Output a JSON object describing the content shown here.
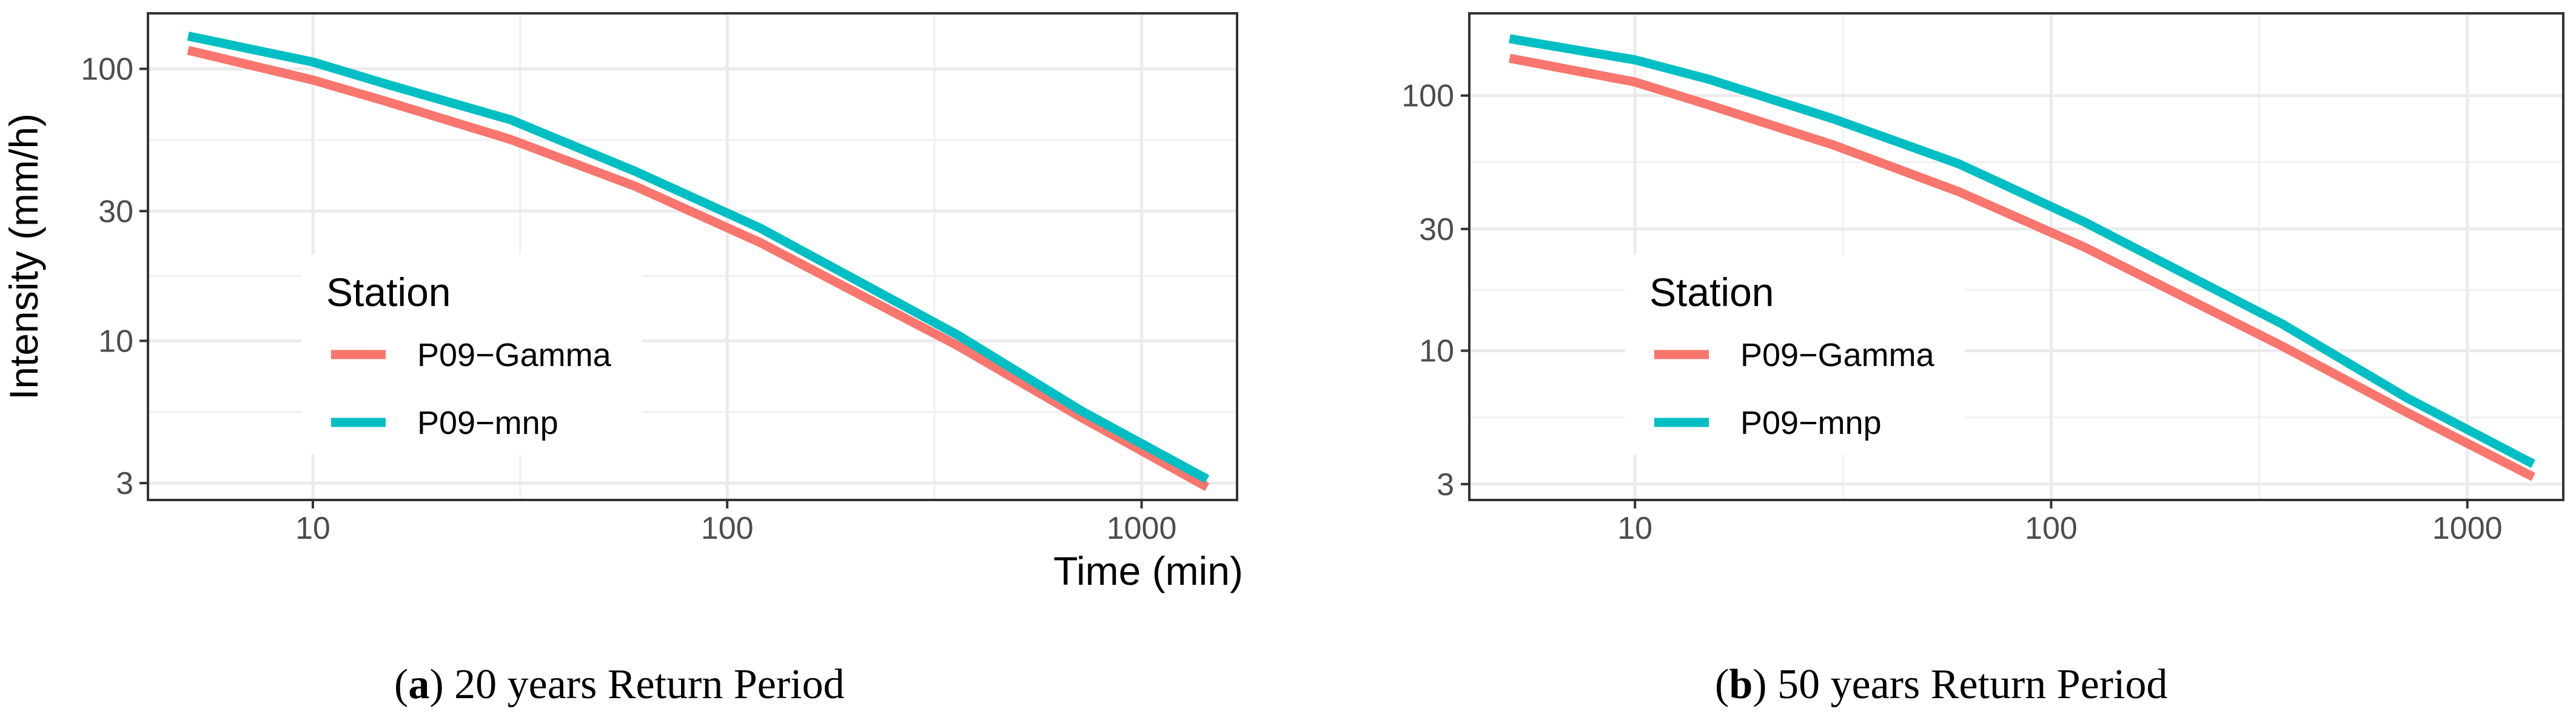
{
  "chart_data": [
    {
      "type": "line",
      "panel_letter": "a",
      "caption": "20 years Return Period",
      "xlabel": "Time (min)",
      "ylabel": "Intensity (mm/h)",
      "xscale": "log",
      "yscale": "log",
      "xlim": [
        4,
        1700
      ],
      "ylim": [
        2.6,
        160
      ],
      "xticks": [
        10,
        100,
        1000
      ],
      "xtick_labels": [
        "10",
        "100",
        "1000"
      ],
      "yticks": [
        3,
        10,
        30,
        100
      ],
      "ytick_labels": [
        "3",
        "10",
        "30",
        "100"
      ],
      "grid": true,
      "legend": {
        "title": "Station",
        "position": "inside-left"
      },
      "x": [
        5,
        10,
        15,
        30,
        60,
        120,
        360,
        720,
        1440
      ],
      "series": [
        {
          "name": "P09−Gamma",
          "color": "#F8766D",
          "values": [
            117,
            91,
            76,
            55,
            37,
            23,
            9.6,
            5.2,
            2.9
          ]
        },
        {
          "name": "P09−mnp",
          "color": "#00BFC4",
          "values": [
            132,
            106,
            88,
            65,
            42,
            26,
            10.5,
            5.5,
            3.1
          ]
        }
      ]
    },
    {
      "type": "line",
      "panel_letter": "b",
      "caption": "50 years Return Period",
      "xlabel": "",
      "ylabel": "",
      "xscale": "log",
      "yscale": "log",
      "xlim": [
        4,
        1700
      ],
      "ylim": [
        2.6,
        210
      ],
      "xticks": [
        10,
        100,
        1000
      ],
      "xtick_labels": [
        "10",
        "100",
        "1000"
      ],
      "yticks": [
        3,
        10,
        30,
        100
      ],
      "ytick_labels": [
        "3",
        "10",
        "30",
        "100"
      ],
      "grid": true,
      "legend": {
        "title": "Station",
        "position": "inside-left"
      },
      "x": [
        5,
        10,
        15,
        30,
        60,
        120,
        360,
        720,
        1440
      ],
      "series": [
        {
          "name": "P09−Gamma",
          "color": "#F8766D",
          "values": [
            140,
            113,
            92,
            64,
            42,
            25.5,
            10.4,
            5.7,
            3.2
          ]
        },
        {
          "name": "P09−mnp",
          "color": "#00BFC4",
          "values": [
            167,
            138,
            116,
            81,
            54,
            32,
            12.7,
            6.5,
            3.6
          ]
        }
      ]
    }
  ]
}
